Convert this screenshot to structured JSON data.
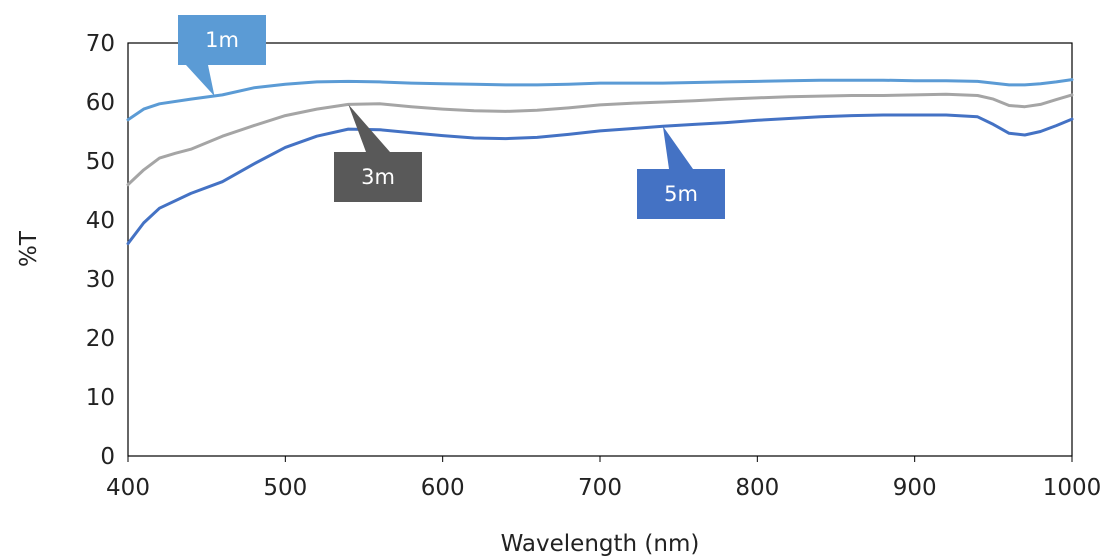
{
  "chart_data": {
    "type": "line",
    "title": "",
    "xlabel": "Wavelength (nm)",
    "ylabel": "%T",
    "xlim": [
      400,
      1000
    ],
    "ylim": [
      0,
      70
    ],
    "xticks": [
      400,
      500,
      600,
      700,
      800,
      900,
      1000
    ],
    "yticks": [
      0,
      10,
      20,
      30,
      40,
      50,
      60,
      70
    ],
    "grid": false,
    "legend": "none",
    "series": [
      {
        "name": "1m",
        "color": "#5b9bd5",
        "x": [
          400,
          410,
          420,
          440,
          460,
          480,
          500,
          520,
          540,
          560,
          580,
          600,
          620,
          640,
          660,
          680,
          700,
          720,
          740,
          760,
          780,
          800,
          820,
          840,
          860,
          880,
          900,
          920,
          940,
          950,
          960,
          970,
          980,
          990,
          1000
        ],
        "y": [
          57.0,
          58.8,
          59.7,
          60.5,
          61.2,
          62.4,
          63.0,
          63.4,
          63.5,
          63.4,
          63.2,
          63.1,
          63.0,
          62.9,
          62.9,
          63.0,
          63.2,
          63.2,
          63.2,
          63.3,
          63.4,
          63.5,
          63.6,
          63.7,
          63.7,
          63.7,
          63.6,
          63.6,
          63.5,
          63.2,
          62.9,
          62.9,
          63.1,
          63.4,
          63.8
        ]
      },
      {
        "name": "3m",
        "color": "#a5a5a5",
        "x": [
          400,
          410,
          420,
          430,
          440,
          460,
          480,
          500,
          520,
          540,
          560,
          580,
          600,
          620,
          640,
          660,
          680,
          700,
          720,
          740,
          760,
          780,
          800,
          820,
          840,
          860,
          880,
          900,
          920,
          940,
          950,
          960,
          970,
          980,
          990,
          1000
        ],
        "y": [
          46.0,
          48.5,
          50.5,
          51.3,
          52.0,
          54.2,
          56.0,
          57.7,
          58.8,
          59.6,
          59.7,
          59.2,
          58.8,
          58.5,
          58.4,
          58.6,
          59.0,
          59.5,
          59.8,
          60.0,
          60.2,
          60.5,
          60.7,
          60.9,
          61.0,
          61.1,
          61.1,
          61.2,
          61.3,
          61.1,
          60.5,
          59.4,
          59.2,
          59.6,
          60.4,
          61.2
        ]
      },
      {
        "name": "5m",
        "color": "#4472c4",
        "x": [
          400,
          410,
          420,
          440,
          460,
          480,
          500,
          520,
          540,
          560,
          580,
          600,
          620,
          640,
          660,
          680,
          700,
          720,
          740,
          760,
          780,
          800,
          820,
          840,
          860,
          880,
          900,
          920,
          940,
          950,
          960,
          970,
          980,
          990,
          1000
        ],
        "y": [
          36.0,
          39.5,
          42.0,
          44.5,
          46.5,
          49.5,
          52.3,
          54.2,
          55.4,
          55.3,
          54.8,
          54.3,
          53.9,
          53.8,
          54.0,
          54.5,
          55.1,
          55.5,
          55.9,
          56.2,
          56.5,
          56.9,
          57.2,
          57.5,
          57.7,
          57.8,
          57.8,
          57.8,
          57.5,
          56.2,
          54.7,
          54.4,
          55.0,
          56.0,
          57.1
        ]
      }
    ],
    "annotations": [
      {
        "text": "1m",
        "series": "1m",
        "point_x": 455,
        "point_y": 61.0,
        "box_color": "#5b9bd5"
      },
      {
        "text": "3m",
        "series": "3m",
        "point_x": 540,
        "point_y": 59.6,
        "box_color": "#595959"
      },
      {
        "text": "5m",
        "series": "5m",
        "point_x": 740,
        "point_y": 55.9,
        "box_color": "#4472c4"
      }
    ]
  }
}
